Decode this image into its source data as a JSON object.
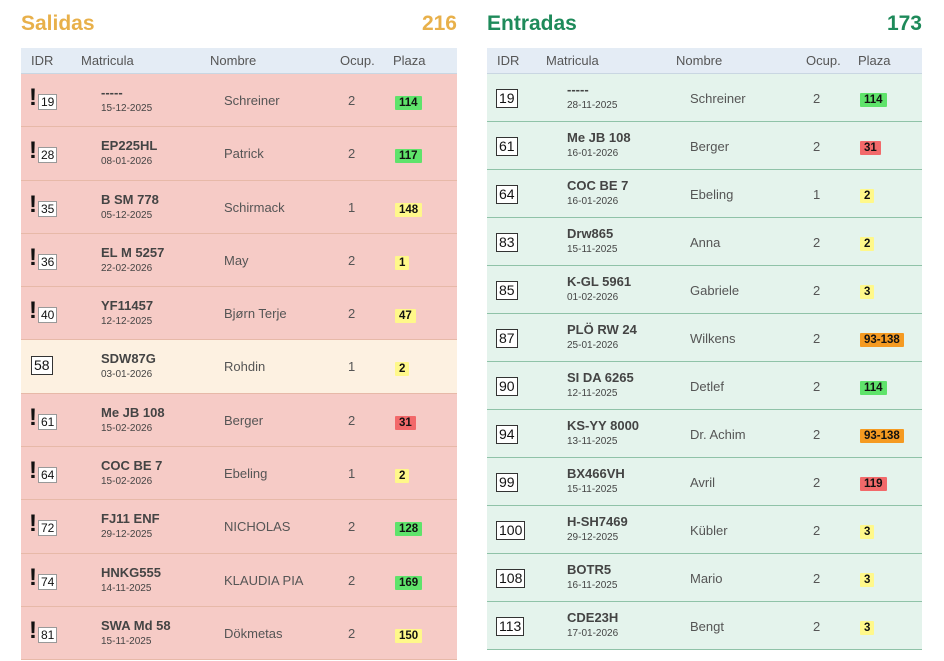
{
  "salidas": {
    "title": "Salidas",
    "count": "216",
    "headers": {
      "idr": "IDR",
      "matricula": "Matricula",
      "nombre": "Nombre",
      "ocup": "Ocup.",
      "plaza": "Plaza"
    },
    "rows": [
      {
        "alert": "!",
        "idr": "19",
        "plate": "-----",
        "date": "15-12-2025",
        "name": "Schreiner",
        "occ": "2",
        "plaza": "114",
        "badge": "green",
        "row": "red"
      },
      {
        "alert": "!",
        "idr": "28",
        "plate": "EP225HL",
        "date": "08-01-2026",
        "name": "Patrick",
        "occ": "2",
        "plaza": "117",
        "badge": "green",
        "row": "red"
      },
      {
        "alert": "!",
        "idr": "35",
        "plate": "B SM 778",
        "date": "05-12-2025",
        "name": "Schirmack",
        "occ": "1",
        "plaza": "148",
        "badge": "yellow",
        "row": "red"
      },
      {
        "alert": "!",
        "idr": "36",
        "plate": "EL M 5257",
        "date": "22-02-2026",
        "name": "May",
        "occ": "2",
        "plaza": "1",
        "badge": "yellow",
        "row": "red"
      },
      {
        "alert": "!",
        "idr": "40",
        "plate": "YF11457",
        "date": "12-12-2025",
        "name": "Bjørn Terje",
        "occ": "2",
        "plaza": "47",
        "badge": "yellow",
        "row": "red"
      },
      {
        "alert": "",
        "idr": "58",
        "plate": "SDW87G",
        "date": "03-01-2026",
        "name": "Rohdin",
        "occ": "1",
        "plaza": "2",
        "badge": "yellow",
        "row": "cream"
      },
      {
        "alert": "!",
        "idr": "61",
        "plate": "Me JB 108",
        "date": "15-02-2026",
        "name": "Berger",
        "occ": "2",
        "plaza": "31",
        "badge": "red",
        "row": "red"
      },
      {
        "alert": "!",
        "idr": "64",
        "plate": "COC BE 7",
        "date": "15-02-2026",
        "name": "Ebeling",
        "occ": "1",
        "plaza": "2",
        "badge": "yellow",
        "row": "red"
      },
      {
        "alert": "!",
        "idr": "72",
        "plate": "FJ11 ENF",
        "date": "29-12-2025",
        "name": "NICHOLAS",
        "occ": "2",
        "plaza": "128",
        "badge": "green",
        "row": "red"
      },
      {
        "alert": "!",
        "idr": "74",
        "plate": "HNKG555",
        "date": "14-11-2025",
        "name": "KLAUDIA PIA",
        "occ": "2",
        "plaza": "169",
        "badge": "green",
        "row": "red"
      },
      {
        "alert": "!",
        "idr": "81",
        "plate": "SWA Md 58",
        "date": "15-11-2025",
        "name": "Dökmetas",
        "occ": "2",
        "plaza": "150",
        "badge": "yellow",
        "row": "red"
      }
    ]
  },
  "entradas": {
    "title": "Entradas",
    "count": "173",
    "headers": {
      "idr": "IDR",
      "matricula": "Matricula",
      "nombre": "Nombre",
      "ocup": "Ocup.",
      "plaza": "Plaza"
    },
    "rows": [
      {
        "idr": "19",
        "plate": "-----",
        "date": "28-11-2025",
        "name": "Schreiner",
        "occ": "2",
        "plaza": "114",
        "badge": "green"
      },
      {
        "idr": "61",
        "plate": "Me JB 108",
        "date": "16-01-2026",
        "name": "Berger",
        "occ": "2",
        "plaza": "31",
        "badge": "red"
      },
      {
        "idr": "64",
        "plate": "COC BE 7",
        "date": "16-01-2026",
        "name": "Ebeling",
        "occ": "1",
        "plaza": "2",
        "badge": "yellow"
      },
      {
        "idr": "83",
        "plate": "Drw865",
        "date": "15-11-2025",
        "name": "Anna",
        "occ": "2",
        "plaza": "2",
        "badge": "yellow"
      },
      {
        "idr": "85",
        "plate": "K-GL 5961",
        "date": "01-02-2026",
        "name": "Gabriele",
        "occ": "2",
        "plaza": "3",
        "badge": "yellow"
      },
      {
        "idr": "87",
        "plate": "PLÖ RW 24",
        "date": "25-01-2026",
        "name": "Wilkens",
        "occ": "2",
        "plaza": "93-138",
        "badge": "orange"
      },
      {
        "idr": "90",
        "plate": "SI DA 6265",
        "date": "12-11-2025",
        "name": "Detlef",
        "occ": "2",
        "plaza": "114",
        "badge": "green"
      },
      {
        "idr": "94",
        "plate": "KS-YY 8000",
        "date": "13-11-2025",
        "name": "Dr. Achim",
        "occ": "2",
        "plaza": "93-138",
        "badge": "orange"
      },
      {
        "idr": "99",
        "plate": "BX466VH",
        "date": "15-11-2025",
        "name": "Avril",
        "occ": "2",
        "plaza": "119",
        "badge": "red"
      },
      {
        "idr": "100",
        "plate": "H-SH7469",
        "date": "29-12-2025",
        "name": "Kübler",
        "occ": "2",
        "plaza": "3",
        "badge": "yellow"
      },
      {
        "idr": "108",
        "plate": "BOTR5",
        "date": "16-11-2025",
        "name": "Mario",
        "occ": "2",
        "plaza": "3",
        "badge": "yellow"
      },
      {
        "idr": "113",
        "plate": "CDE23H",
        "date": "17-01-2026",
        "name": "Bengt",
        "occ": "2",
        "plaza": "3",
        "badge": "yellow"
      }
    ]
  }
}
